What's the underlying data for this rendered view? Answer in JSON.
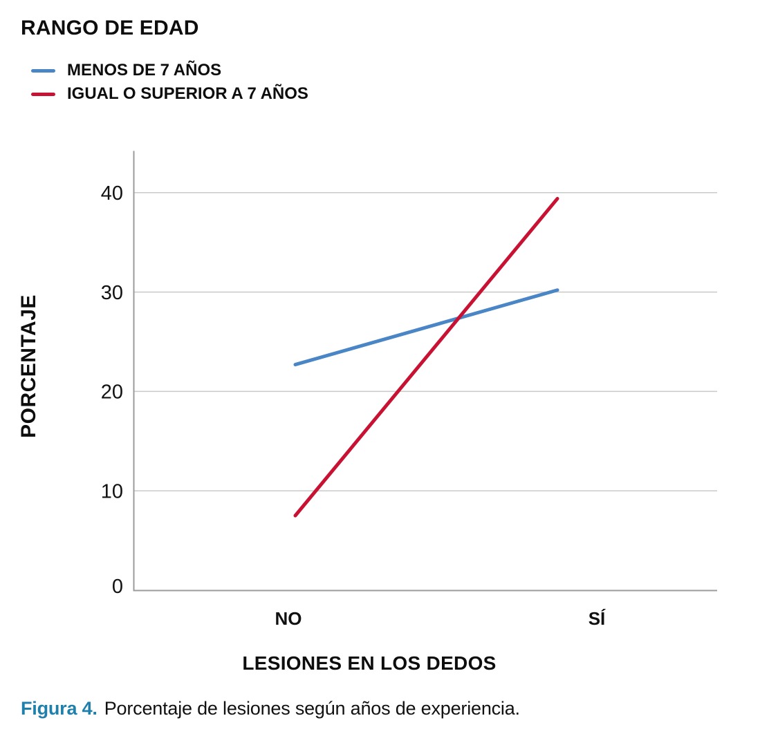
{
  "figure": {
    "caption": {
      "prefix": "Figura 4.",
      "prefix_color": "#2080ac",
      "text": "Porcentaje de lesiones según años de experiencia."
    }
  },
  "chart_data": {
    "type": "line",
    "title": "RANGO DE EDAD",
    "legend_position": "top-left",
    "categories": [
      "NO",
      "SÍ"
    ],
    "series": [
      {
        "name": "MENOS DE 7 AÑOS",
        "color": "#4a86c6",
        "values": [
          22.7,
          30.2
        ]
      },
      {
        "name": "IGUAL O SUPERIOR A 7 AÑOS",
        "color": "#c81233",
        "values": [
          7.5,
          39.4
        ]
      }
    ],
    "xlabel": "LESIONES EN LOS DEDOS",
    "ylabel": "PORCENTAJE",
    "ylim": [
      0,
      44.2
    ],
    "yticks": [
      0,
      10,
      20,
      30,
      40
    ],
    "grid": "horizontal",
    "colors": {
      "gridline": "#c9c9c9",
      "axis": "#9b9b9b",
      "tick_text": "#111111"
    }
  }
}
